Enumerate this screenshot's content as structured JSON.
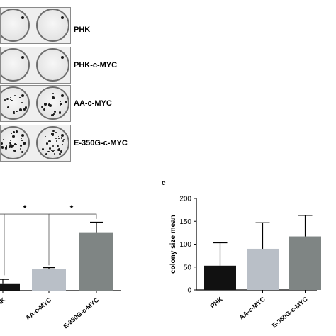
{
  "panel_a": {
    "rows": [
      {
        "label": "PHK",
        "density": 0
      },
      {
        "label": "PHK-c-MYC",
        "density": 0
      },
      {
        "label": "AA-c-MYC",
        "density": 2
      },
      {
        "label": "E-350G-c-MYC",
        "density": 3
      }
    ]
  },
  "chart_data": [
    {
      "type": "bar",
      "panel": "b",
      "categories": [
        "PHK",
        "AA-c-MYC",
        "E-350G-c-MYC"
      ],
      "values": [
        18,
        53,
        145
      ],
      "errors": [
        10,
        4,
        25
      ],
      "bar_colors": [
        "#111111",
        "#b9bfc7",
        "#7f8584"
      ],
      "significance": [
        {
          "from": 0,
          "to": 1,
          "label": "*"
        },
        {
          "from": 1,
          "to": 2,
          "label": "*"
        }
      ],
      "ylim": [
        0,
        200
      ]
    },
    {
      "type": "bar",
      "panel": "c",
      "panel_label": "c",
      "categories": [
        "PHK",
        "AA-c-MYC",
        "E-350G-c-MYC"
      ],
      "values": [
        53,
        90,
        117
      ],
      "errors": [
        50,
        57,
        46
      ],
      "bar_colors": [
        "#111111",
        "#b9bfc7",
        "#7f8584"
      ],
      "ylabel": "colony size mean",
      "yticks": [
        0,
        50,
        100,
        150,
        200
      ],
      "ylim": [
        0,
        200
      ]
    }
  ]
}
